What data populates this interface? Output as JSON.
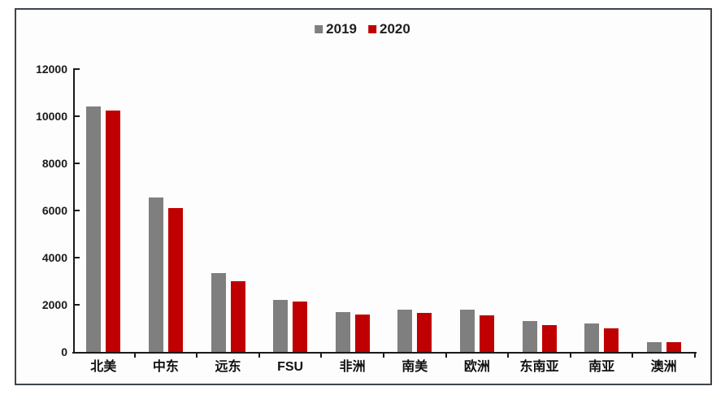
{
  "chart_data": {
    "type": "bar",
    "title": "",
    "xlabel": "",
    "ylabel": "",
    "categories": [
      "北美",
      "中东",
      "远东",
      "FSU",
      "非洲",
      "南美",
      "欧洲",
      "东南亚",
      "南亚",
      "澳洲"
    ],
    "series": [
      {
        "name": "2019",
        "color": "#7f7f7f",
        "values": [
          10400,
          6550,
          3350,
          2200,
          1700,
          1800,
          1800,
          1300,
          1200,
          400
        ]
      },
      {
        "name": "2020",
        "color": "#c00000",
        "values": [
          10250,
          6100,
          3000,
          2150,
          1600,
          1650,
          1550,
          1150,
          1000,
          430
        ]
      }
    ],
    "ylim": [
      0,
      12000
    ],
    "yticks": [
      0,
      2000,
      4000,
      6000,
      8000,
      10000,
      12000
    ],
    "grid": false,
    "legend_position": "top-center",
    "axis_color": "#1a1a1a",
    "frame_border_color": "#3d444c",
    "background_color": "#fdfdfd"
  }
}
